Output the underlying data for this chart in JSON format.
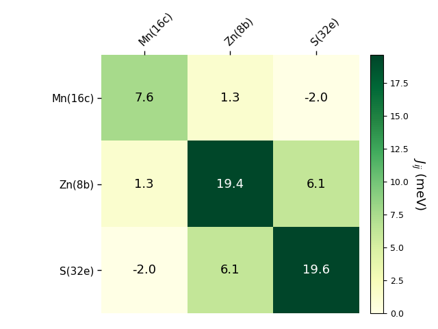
{
  "labels": [
    "Mn(16c)",
    "Zn(8b)",
    "S(32e)"
  ],
  "matrix": [
    [
      7.6,
      1.3,
      -2.0
    ],
    [
      1.3,
      19.4,
      6.1
    ],
    [
      -2.0,
      6.1,
      19.6
    ]
  ],
  "cmap": "YlGn",
  "vmin": 0.0,
  "vmax": 19.6,
  "colorbar_label": "$J_{ij}$ (meV)",
  "colorbar_ticks": [
    0.0,
    2.5,
    5.0,
    7.5,
    10.0,
    12.5,
    15.0,
    17.5
  ],
  "colorbar_ticklabels": [
    "0.0",
    "2.5",
    "5.0",
    "7.5",
    "10.0",
    "12.5",
    "15.0",
    "17.5"
  ],
  "figsize": [
    6.4,
    4.8
  ],
  "dpi": 100
}
